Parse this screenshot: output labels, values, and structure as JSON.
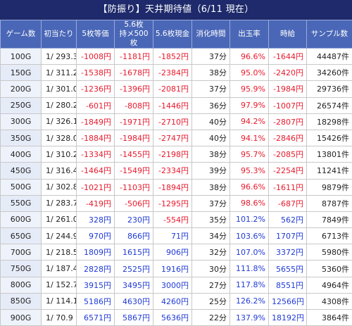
{
  "title": "【防振り】天井期待値（6/11 現在）",
  "columns": [
    "ゲーム数",
    "初当たり",
    "5枚等価",
    "5.6枚",
    "持メ500枚",
    "5.6枚現金",
    "消化時間",
    "出玉率",
    "時給",
    "サンプル数"
  ],
  "rows": [
    {
      "game": "100G",
      "hit": "1/ 293.3",
      "eq5": "-1008円",
      "mochi": "-1181円",
      "cash": "-1852円",
      "time": "37分",
      "rate": "96.6%",
      "hourly": "-1644円",
      "samples": "44487件"
    },
    {
      "game": "150G",
      "hit": "1/ 311.2",
      "eq5": "-1538円",
      "mochi": "-1678円",
      "cash": "-2384円",
      "time": "38分",
      "rate": "95.0%",
      "hourly": "-2420円",
      "samples": "34260件"
    },
    {
      "game": "200G",
      "hit": "1/ 301.0",
      "eq5": "-1236円",
      "mochi": "-1396円",
      "cash": "-2081円",
      "time": "37分",
      "rate": "95.9%",
      "hourly": "-1984円",
      "samples": "29736件"
    },
    {
      "game": "250G",
      "hit": "1/ 280.2",
      "eq5": "-601円",
      "mochi": "-808円",
      "cash": "-1446円",
      "time": "36分",
      "rate": "97.9%",
      "hourly": "-1007円",
      "samples": "26574件"
    },
    {
      "game": "300G",
      "hit": "1/ 326.1",
      "eq5": "-1849円",
      "mochi": "-1971円",
      "cash": "-2710円",
      "time": "40分",
      "rate": "94.2%",
      "hourly": "-2807円",
      "samples": "18298件"
    },
    {
      "game": "350G",
      "hit": "1/ 328.0",
      "eq5": "-1884円",
      "mochi": "-1984円",
      "cash": "-2747円",
      "time": "40分",
      "rate": "94.1%",
      "hourly": "-2846円",
      "samples": "15426件"
    },
    {
      "game": "400G",
      "hit": "1/ 310.2",
      "eq5": "-1334円",
      "mochi": "-1455円",
      "cash": "-2198円",
      "time": "38分",
      "rate": "95.7%",
      "hourly": "-2085円",
      "samples": "13801件"
    },
    {
      "game": "450G",
      "hit": "1/ 316.4",
      "eq5": "-1464円",
      "mochi": "-1549円",
      "cash": "-2334円",
      "time": "39分",
      "rate": "95.3%",
      "hourly": "-2254円",
      "samples": "11241件"
    },
    {
      "game": "500G",
      "hit": "1/ 302.8",
      "eq5": "-1021円",
      "mochi": "-1103円",
      "cash": "-1894円",
      "time": "38分",
      "rate": "96.6%",
      "hourly": "-1611円",
      "samples": "9879件"
    },
    {
      "game": "550G",
      "hit": "1/ 283.7",
      "eq5": "-419円",
      "mochi": "-506円",
      "cash": "-1295円",
      "time": "37分",
      "rate": "98.6%",
      "hourly": "-687円",
      "samples": "8787件"
    },
    {
      "game": "600G",
      "hit": "1/ 261.0",
      "eq5": "328円",
      "mochi": "230円",
      "cash": "-554円",
      "time": "35分",
      "rate": "101.2%",
      "hourly": "562円",
      "samples": "7849件"
    },
    {
      "game": "650G",
      "hit": "1/ 244.9",
      "eq5": "970円",
      "mochi": "866円",
      "cash": "71円",
      "time": "34分",
      "rate": "103.6%",
      "hourly": "1707円",
      "samples": "6713件"
    },
    {
      "game": "700G",
      "hit": "1/ 218.5",
      "eq5": "1809円",
      "mochi": "1615円",
      "cash": "906円",
      "time": "32分",
      "rate": "107.0%",
      "hourly": "3372円",
      "samples": "5980件"
    },
    {
      "game": "750G",
      "hit": "1/ 187.4",
      "eq5": "2828円",
      "mochi": "2525円",
      "cash": "1916円",
      "time": "30分",
      "rate": "111.8%",
      "hourly": "5655円",
      "samples": "5360件"
    },
    {
      "game": "800G",
      "hit": "1/ 152.7",
      "eq5": "3915円",
      "mochi": "3495円",
      "cash": "3000円",
      "time": "27分",
      "rate": "117.8%",
      "hourly": "8551円",
      "samples": "4964件"
    },
    {
      "game": "850G",
      "hit": "1/ 114.1",
      "eq5": "5186円",
      "mochi": "4630円",
      "cash": "4260円",
      "time": "25分",
      "rate": "126.2%",
      "hourly": "12566円",
      "samples": "4308件"
    },
    {
      "game": "900G",
      "hit": "1/ 70.9",
      "eq5": "6571円",
      "mochi": "5867円",
      "cash": "5636円",
      "time": "22分",
      "rate": "137.9%",
      "hourly": "18192円",
      "samples": "3864件"
    }
  ]
}
